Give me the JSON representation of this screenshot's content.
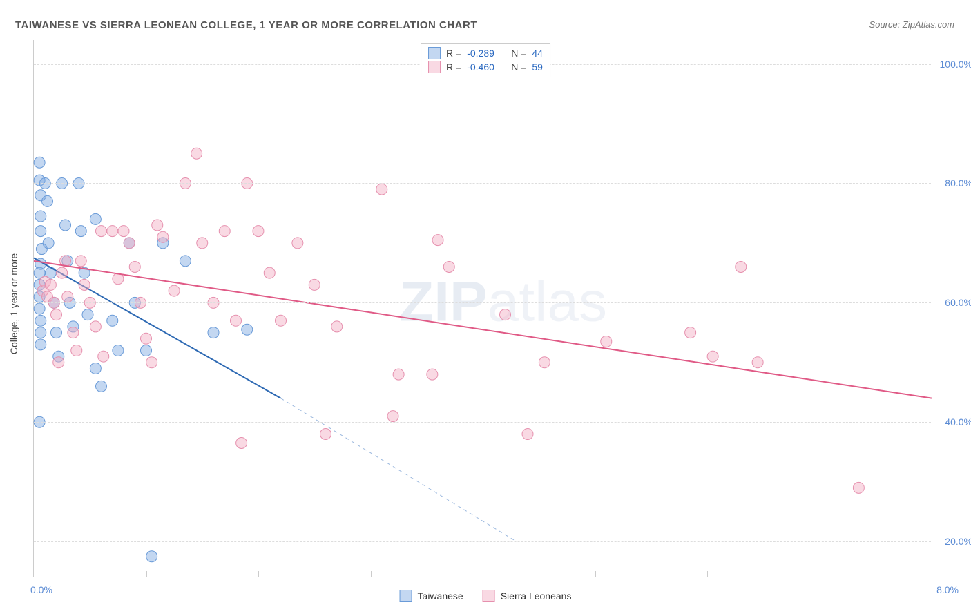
{
  "title": "TAIWANESE VS SIERRA LEONEAN COLLEGE, 1 YEAR OR MORE CORRELATION CHART",
  "source": "Source: ZipAtlas.com",
  "watermark_zip": "ZIP",
  "watermark_atlas": "atlas",
  "yaxis_label": "College, 1 year or more",
  "chart": {
    "type": "scatter",
    "xlim": [
      0.0,
      8.0
    ],
    "ylim": [
      14.0,
      104.0
    ],
    "x_tick_positions": [
      0,
      1,
      2,
      3,
      4,
      5,
      6,
      7,
      8
    ],
    "y_tick_positions": [
      20,
      40,
      60,
      80,
      100
    ],
    "y_tick_labels": [
      "20.0%",
      "40.0%",
      "60.0%",
      "80.0%",
      "100.0%"
    ],
    "x_min_label": "0.0%",
    "x_max_label": "8.0%",
    "grid_color": "#dddddd",
    "axis_color": "#cccccc",
    "background_color": "#ffffff",
    "series": [
      {
        "name": "Taiwanese",
        "marker_fill": "rgba(122,167,224,0.45)",
        "marker_stroke": "#6a9bd8",
        "marker_radius": 8,
        "line_color": "#2d69b3",
        "line_width": 2,
        "dash_color": "#9bb8de",
        "R": "-0.289",
        "N": "44",
        "trend": {
          "x1": 0.0,
          "y1": 67.5,
          "x2": 2.2,
          "y2": 44.0,
          "x2_ext": 4.3,
          "y2_ext": 20.0
        },
        "points": [
          [
            0.05,
            83.5
          ],
          [
            0.05,
            80.5
          ],
          [
            0.06,
            78.0
          ],
          [
            0.06,
            74.5
          ],
          [
            0.06,
            72.0
          ],
          [
            0.07,
            69.0
          ],
          [
            0.06,
            66.5
          ],
          [
            0.05,
            65.0
          ],
          [
            0.05,
            63.0
          ],
          [
            0.05,
            61.0
          ],
          [
            0.05,
            59.0
          ],
          [
            0.06,
            57.0
          ],
          [
            0.06,
            55.0
          ],
          [
            0.06,
            53.0
          ],
          [
            0.1,
            80.0
          ],
          [
            0.12,
            77.0
          ],
          [
            0.13,
            70.0
          ],
          [
            0.15,
            65.0
          ],
          [
            0.18,
            60.0
          ],
          [
            0.2,
            55.0
          ],
          [
            0.22,
            51.0
          ],
          [
            0.25,
            80.0
          ],
          [
            0.28,
            73.0
          ],
          [
            0.3,
            67.0
          ],
          [
            0.32,
            60.0
          ],
          [
            0.35,
            56.0
          ],
          [
            0.4,
            80.0
          ],
          [
            0.42,
            72.0
          ],
          [
            0.45,
            65.0
          ],
          [
            0.48,
            58.0
          ],
          [
            0.55,
            49.0
          ],
          [
            0.55,
            74.0
          ],
          [
            0.6,
            46.0
          ],
          [
            0.7,
            57.0
          ],
          [
            0.75,
            52.0
          ],
          [
            0.85,
            70.0
          ],
          [
            0.9,
            60.0
          ],
          [
            1.0,
            52.0
          ],
          [
            1.15,
            70.0
          ],
          [
            1.35,
            67.0
          ],
          [
            1.6,
            55.0
          ],
          [
            1.9,
            55.5
          ],
          [
            0.05,
            40.0
          ],
          [
            1.05,
            17.5
          ]
        ]
      },
      {
        "name": "Sierra Leoneans",
        "marker_fill": "rgba(241,170,192,0.45)",
        "marker_stroke": "#e690ae",
        "marker_radius": 8,
        "line_color": "#e05a86",
        "line_width": 2,
        "R": "-0.460",
        "N": "59",
        "trend": {
          "x1": 0.0,
          "y1": 67.0,
          "x2": 8.0,
          "y2": 44.0
        },
        "points": [
          [
            0.08,
            62.0
          ],
          [
            0.1,
            63.5
          ],
          [
            0.12,
            61.0
          ],
          [
            0.15,
            63.0
          ],
          [
            0.18,
            60.0
          ],
          [
            0.2,
            58.0
          ],
          [
            0.22,
            50.0
          ],
          [
            0.25,
            65.0
          ],
          [
            0.28,
            67.0
          ],
          [
            0.3,
            61.0
          ],
          [
            0.35,
            55.0
          ],
          [
            0.38,
            52.0
          ],
          [
            0.42,
            67.0
          ],
          [
            0.45,
            63.0
          ],
          [
            0.5,
            60.0
          ],
          [
            0.55,
            56.0
          ],
          [
            0.6,
            72.0
          ],
          [
            0.62,
            51.0
          ],
          [
            0.7,
            72.0
          ],
          [
            0.75,
            64.0
          ],
          [
            0.8,
            72.0
          ],
          [
            0.85,
            70.0
          ],
          [
            0.9,
            66.0
          ],
          [
            0.95,
            60.0
          ],
          [
            1.0,
            54.0
          ],
          [
            1.05,
            50.0
          ],
          [
            1.1,
            73.0
          ],
          [
            1.15,
            71.0
          ],
          [
            1.25,
            62.0
          ],
          [
            1.35,
            80.0
          ],
          [
            1.45,
            85.0
          ],
          [
            1.5,
            70.0
          ],
          [
            1.6,
            60.0
          ],
          [
            1.7,
            72.0
          ],
          [
            1.8,
            57.0
          ],
          [
            1.9,
            80.0
          ],
          [
            2.0,
            72.0
          ],
          [
            2.1,
            65.0
          ],
          [
            2.2,
            57.0
          ],
          [
            2.35,
            70.0
          ],
          [
            2.5,
            63.0
          ],
          [
            2.6,
            38.0
          ],
          [
            2.7,
            56.0
          ],
          [
            1.85,
            36.5
          ],
          [
            3.1,
            79.0
          ],
          [
            3.2,
            41.0
          ],
          [
            3.25,
            48.0
          ],
          [
            3.55,
            48.0
          ],
          [
            3.7,
            66.0
          ],
          [
            4.2,
            58.0
          ],
          [
            4.4,
            38.0
          ],
          [
            4.55,
            50.0
          ],
          [
            5.1,
            53.5
          ],
          [
            5.85,
            55.0
          ],
          [
            6.05,
            51.0
          ],
          [
            6.3,
            66.0
          ],
          [
            6.45,
            50.0
          ],
          [
            7.35,
            29.0
          ],
          [
            3.6,
            70.5
          ]
        ]
      }
    ]
  },
  "legend_top": {
    "rows": [
      {
        "swatch_fill": "rgba(122,167,224,0.45)",
        "swatch_border": "#6a9bd8",
        "R_label": "R =",
        "R": "-0.289",
        "N_label": "N =",
        "N": "44"
      },
      {
        "swatch_fill": "rgba(241,170,192,0.45)",
        "swatch_border": "#e690ae",
        "R_label": "R =",
        "R": "-0.460",
        "N_label": "N =",
        "N": "59"
      }
    ]
  },
  "legend_bottom": {
    "items": [
      {
        "swatch_fill": "rgba(122,167,224,0.45)",
        "swatch_border": "#6a9bd8",
        "label": "Taiwanese"
      },
      {
        "swatch_fill": "rgba(241,170,192,0.45)",
        "swatch_border": "#e690ae",
        "label": "Sierra Leoneans"
      }
    ]
  }
}
